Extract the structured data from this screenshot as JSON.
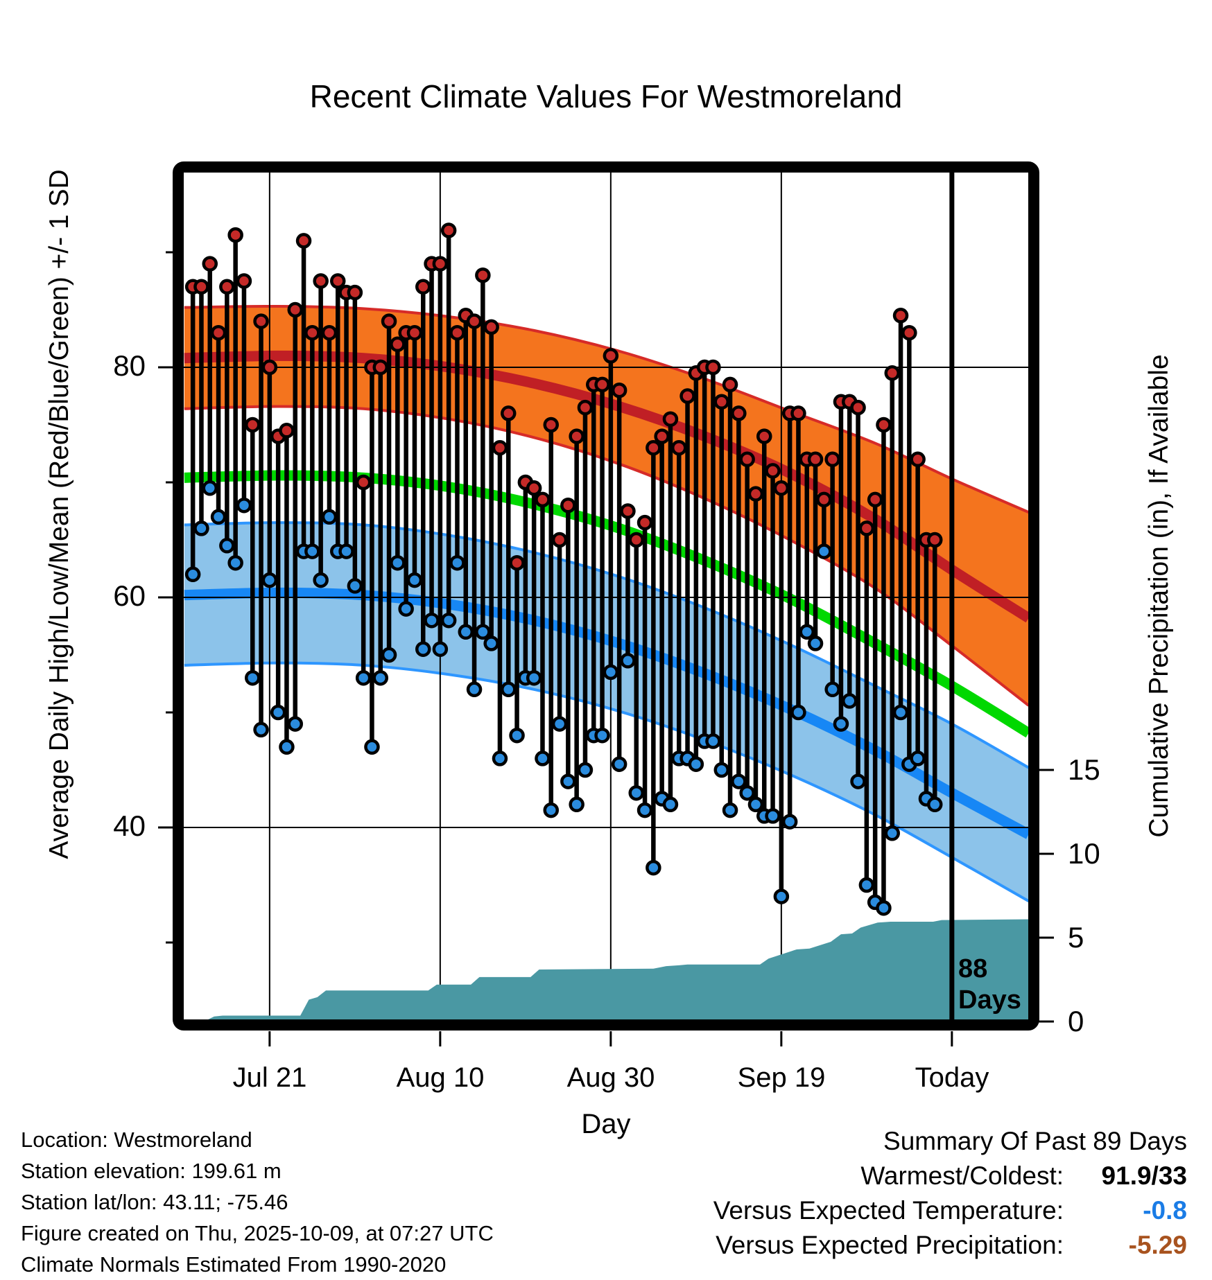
{
  "title": "Recent Climate Values For Westmoreland",
  "axes": {
    "left": {
      "label": "Average Daily High/Low/Mean (Red/Blue/Green) +/- 1 SD",
      "ticks": [
        "80",
        "60",
        "40"
      ]
    },
    "right": {
      "label": "Cumulative Precipitation (in), If Available",
      "ticks": [
        "15",
        "10",
        "5",
        "0"
      ]
    },
    "x": {
      "label": "Day",
      "ticks": [
        "Jul 21",
        "Aug 10",
        "Aug 30",
        "Sep 19",
        "Today"
      ]
    }
  },
  "annotation": {
    "line1": "88",
    "line2": "Days"
  },
  "footer": {
    "lines": [
      "Location: Westmoreland",
      "Station elevation: 199.61 m",
      "Station lat/lon: 43.11; -75.46",
      "Figure created on Thu, 2025-10-09, at 07:27 UTC",
      "Climate Normals Estimated From 1990-2020"
    ]
  },
  "summary": {
    "title": "Summary Of Past 89 Days",
    "rows": [
      {
        "label": "Warmest/Coldest:",
        "value": "91.9/33",
        "color": "#000000"
      },
      {
        "label": "Versus Expected Temperature:",
        "value": "-0.8",
        "color": "#1a7ce6"
      },
      {
        "label": "Versus Expected Precipitation:",
        "value": "-5.29",
        "color": "#a8531f"
      }
    ]
  },
  "colors": {
    "high_band": "#f4741e",
    "high_band_edge": "#d62b28",
    "high_mean_line": "#c01f25",
    "mean_line": "#00d800",
    "low_band": "#8cc3ea",
    "low_band_edge": "#2e96ff",
    "low_mean_line": "#1787f5",
    "high_dot": "#c42a28",
    "low_dot": "#2b8cde",
    "stem": "#000000",
    "precip_fill": "#4a98a3",
    "grid": "#000000",
    "frame": "#000000"
  },
  "chart_data": {
    "type": "climate-daily-range",
    "title": "Recent Climate Values For Westmoreland",
    "xlabel": "Day",
    "ylabel_left": "Average Daily High/Low/Mean (Red/Blue/Green) +/- 1 SD",
    "ylabel_right": "Cumulative Precipitation (in), If Available",
    "x_tick_days": [
      9,
      29,
      49,
      69,
      89
    ],
    "x_tick_labels": [
      "Jul 21",
      "Aug 10",
      "Aug 30",
      "Sep 19",
      "Today"
    ],
    "temp_ticks": [
      80,
      60,
      40
    ],
    "temp_minor_ticks": [
      90,
      70,
      50,
      30
    ],
    "temp_ylim": [
      23.3,
      96.9
    ],
    "precip_ticks": [
      15,
      10,
      5,
      0
    ],
    "data_days": 88,
    "today_day": 89,
    "normals": {
      "days": [
        -1,
        10,
        20,
        30,
        40,
        50,
        60,
        70,
        80,
        89,
        98
      ],
      "high_upper": [
        85.2,
        85.3,
        85.1,
        84.4,
        83.2,
        81.4,
        79.0,
        76.2,
        73.4,
        70.3,
        67.4
      ],
      "high_mean": [
        80.8,
        81.0,
        80.8,
        80.0,
        78.6,
        76.6,
        74.0,
        70.8,
        66.8,
        62.4,
        58.2
      ],
      "high_lower": [
        76.4,
        76.6,
        76.4,
        75.5,
        73.9,
        71.6,
        68.6,
        65.0,
        60.8,
        55.8,
        50.6
      ],
      "mean": [
        70.4,
        70.6,
        70.4,
        69.6,
        68.1,
        66.0,
        63.2,
        59.9,
        56.0,
        52.3,
        48.2
      ],
      "low_upper": [
        66.3,
        66.5,
        66.3,
        65.4,
        63.9,
        61.8,
        59.1,
        55.9,
        52.3,
        49.0,
        45.2
      ],
      "low_mean": [
        60.2,
        60.4,
        60.2,
        59.4,
        58.0,
        56.0,
        53.4,
        50.3,
        46.7,
        43.0,
        39.4
      ],
      "low_lower": [
        54.1,
        54.3,
        54.1,
        53.3,
        52.0,
        50.1,
        47.6,
        44.6,
        41.1,
        37.4,
        33.6
      ]
    },
    "daily": {
      "start_day": 0,
      "highs": [
        87,
        87,
        89,
        83,
        87,
        91.5,
        87.5,
        75,
        84,
        80,
        74,
        74.5,
        85,
        91,
        83,
        87.5,
        83,
        87.5,
        86.5,
        86.5,
        70,
        80,
        80,
        84,
        82,
        83,
        83,
        87,
        89,
        89,
        91.9,
        83,
        84.5,
        84,
        88,
        83.5,
        73,
        76,
        63,
        70,
        69.5,
        68.5,
        75,
        65,
        68,
        74,
        76.5,
        78.5,
        78.5,
        81,
        78,
        67.5,
        65,
        66.5,
        73,
        74,
        75.5,
        73,
        77.5,
        79.5,
        80,
        80,
        77,
        78.5,
        76,
        72,
        69,
        74,
        71,
        69.5,
        76,
        76,
        72,
        72,
        68.5,
        72,
        77,
        77,
        76.5,
        66,
        68.5,
        75,
        79.5,
        84.5,
        83,
        72,
        65,
        65
      ],
      "lows": [
        62,
        66,
        69.5,
        67,
        64.5,
        63,
        68,
        53,
        48.5,
        61.5,
        50,
        47,
        49,
        64,
        64,
        61.5,
        67,
        64,
        64,
        61,
        53,
        47,
        53,
        55,
        63,
        59,
        61.5,
        55.5,
        58,
        55.5,
        58,
        63,
        57,
        52,
        57,
        56,
        46,
        52,
        48,
        53,
        53,
        46,
        41.5,
        49,
        44,
        42,
        45,
        48,
        48,
        53.5,
        45.5,
        54.5,
        43,
        41.5,
        36.5,
        42.5,
        42,
        46,
        46,
        45.5,
        47.5,
        47.5,
        45,
        41.5,
        44,
        43,
        42,
        41,
        41,
        34,
        40.5,
        50,
        57,
        56,
        64,
        52,
        49,
        51,
        44,
        35,
        33.5,
        33,
        39.5,
        50,
        45.5,
        46,
        42.5,
        42
      ]
    },
    "precip_cumulative": {
      "days": [
        -1,
        1.5,
        2.5,
        3.5,
        12.6,
        13.6,
        14.6,
        15.6,
        27.6,
        28.6,
        32.6,
        33.6,
        39.6,
        40.6,
        54,
        55.5,
        57,
        58,
        66.5,
        67.5,
        70.8,
        72.3,
        74.8,
        76,
        77.3,
        78.3,
        80.3,
        81.8,
        86.8,
        87.8,
        98.5
      ],
      "values": [
        0,
        0.05,
        0.3,
        0.35,
        0.35,
        1.3,
        1.45,
        1.85,
        1.85,
        2.2,
        2.2,
        2.65,
        2.65,
        3.1,
        3.15,
        3.3,
        3.35,
        3.4,
        3.4,
        3.75,
        4.3,
        4.35,
        4.75,
        5.2,
        5.25,
        5.6,
        5.9,
        5.95,
        5.95,
        6.05,
        6.1
      ]
    }
  }
}
